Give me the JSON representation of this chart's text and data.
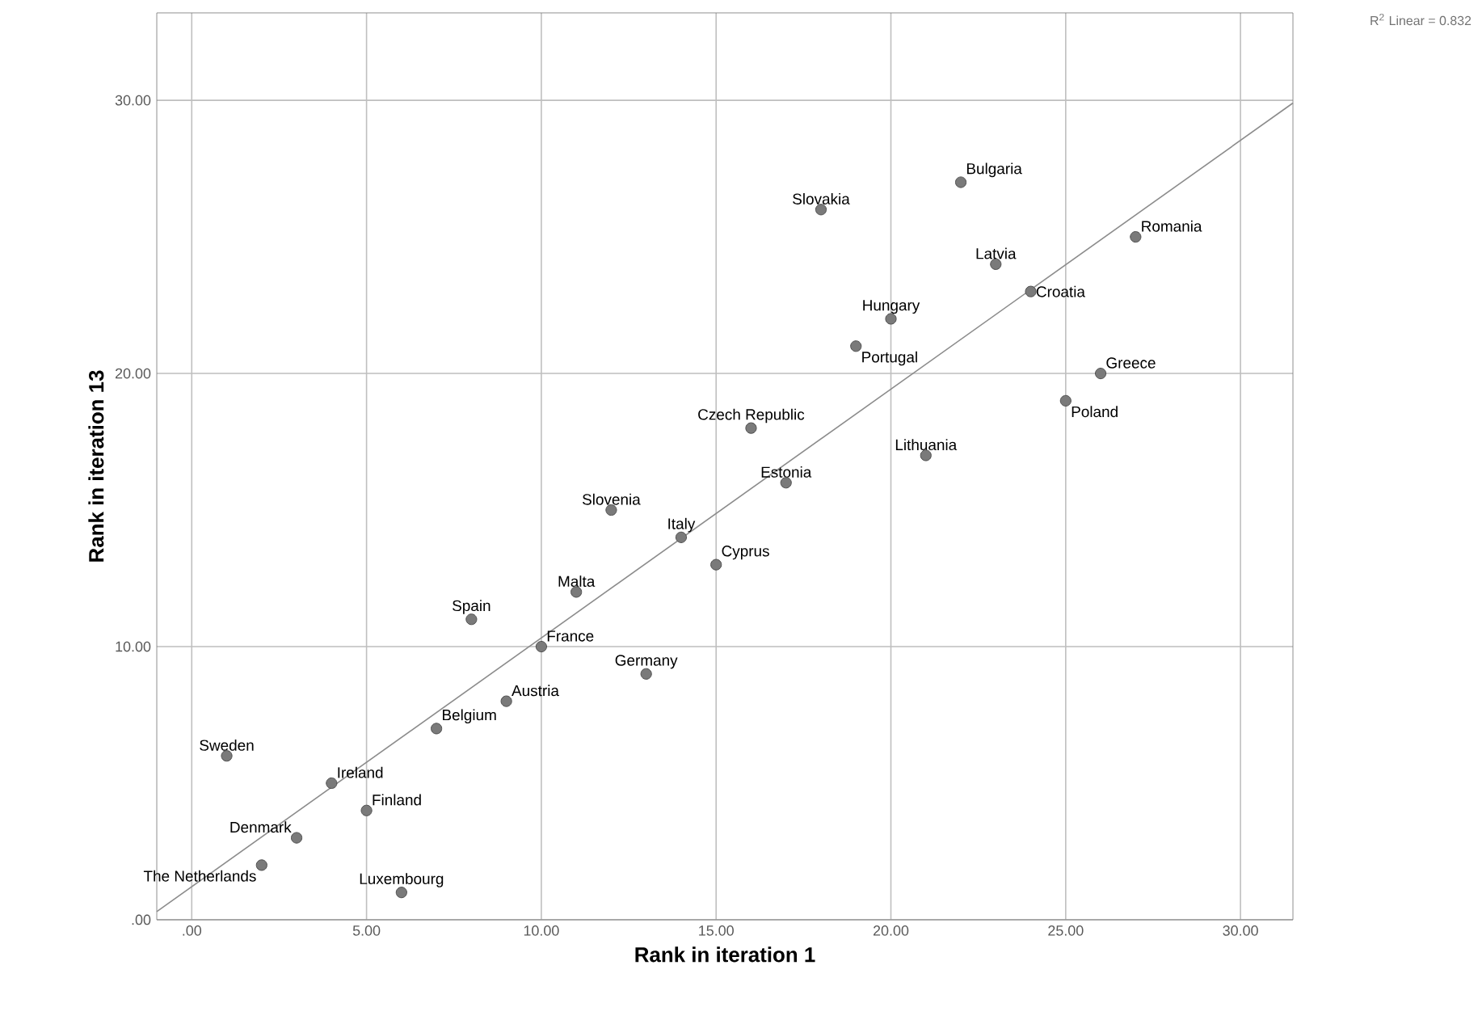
{
  "chart_data": {
    "type": "scatter",
    "xlabel": "Rank in iteration 1",
    "ylabel": "Rank in iteration 13",
    "xlim": [
      -1,
      31.5
    ],
    "ylim": [
      0,
      33.2
    ],
    "xticks": [
      {
        "value": 0,
        "label": ".00"
      },
      {
        "value": 5,
        "label": "5.00"
      },
      {
        "value": 10,
        "label": "10.00"
      },
      {
        "value": 15,
        "label": "15.00"
      },
      {
        "value": 20,
        "label": "20.00"
      },
      {
        "value": 25,
        "label": "25.00"
      },
      {
        "value": 30,
        "label": "30.00"
      }
    ],
    "yticks": [
      {
        "value": 0,
        "label": ".00"
      },
      {
        "value": 10,
        "label": "10.00"
      },
      {
        "value": 20,
        "label": "20.00"
      },
      {
        "value": 30,
        "label": "30.00"
      }
    ],
    "grid": true,
    "series": [
      {
        "marker": "circle",
        "color": "#7a7a7a",
        "x": [
          1,
          3,
          2,
          4,
          5,
          6,
          7,
          8,
          9,
          10,
          11,
          12,
          13,
          14,
          15,
          16,
          17,
          18,
          19,
          20,
          21,
          22,
          23,
          24,
          25,
          26,
          27
        ],
        "values": [
          6,
          3,
          2,
          5,
          4,
          1,
          7,
          11,
          8,
          10,
          12,
          15,
          9,
          14,
          13,
          18,
          16,
          26,
          21,
          22,
          17,
          27,
          24,
          23,
          19,
          20,
          25
        ]
      },
      {
        "type": "line",
        "color": "#8c8c8c",
        "x": [
          -1,
          31.5
        ],
        "values": [
          0.3,
          29.9
        ],
        "marker": "none",
        "line_style": "solid"
      }
    ],
    "annotations": [
      {
        "text": "Sweden",
        "x": 1,
        "y": 6
      },
      {
        "text": "Denmark",
        "x": 3,
        "y": 3
      },
      {
        "text": "The Netherlands",
        "x": 2,
        "y": 2
      },
      {
        "text": "Ireland",
        "x": 4,
        "y": 5
      },
      {
        "text": "Finland",
        "x": 5,
        "y": 4
      },
      {
        "text": "Luxembourg",
        "x": 6,
        "y": 1
      },
      {
        "text": "Belgium",
        "x": 7,
        "y": 7
      },
      {
        "text": "Spain",
        "x": 8,
        "y": 11
      },
      {
        "text": "Austria",
        "x": 9,
        "y": 8
      },
      {
        "text": "France",
        "x": 10,
        "y": 10
      },
      {
        "text": "Malta",
        "x": 11,
        "y": 12
      },
      {
        "text": "Slovenia",
        "x": 12,
        "y": 15
      },
      {
        "text": "Germany",
        "x": 13,
        "y": 9
      },
      {
        "text": "Italy",
        "x": 14,
        "y": 14
      },
      {
        "text": "Cyprus",
        "x": 15,
        "y": 13
      },
      {
        "text": "Czech Republic",
        "x": 16,
        "y": 18
      },
      {
        "text": "Estonia",
        "x": 17,
        "y": 16
      },
      {
        "text": "Slovakia",
        "x": 18,
        "y": 26
      },
      {
        "text": "Portugal",
        "x": 19,
        "y": 21
      },
      {
        "text": "Hungary",
        "x": 20,
        "y": 22
      },
      {
        "text": "Lithuania",
        "x": 21,
        "y": 17
      },
      {
        "text": "Bulgaria",
        "x": 22,
        "y": 27
      },
      {
        "text": "Latvia",
        "x": 23,
        "y": 24
      },
      {
        "text": "Croatia",
        "x": 24,
        "y": 23
      },
      {
        "text": "Poland",
        "x": 25,
        "y": 19
      },
      {
        "text": "Greece",
        "x": 26,
        "y": 20
      },
      {
        "text": "Romania",
        "x": 27,
        "y": 25
      },
      "R$^{2}$ Linear = 0.832"
    ]
  }
}
